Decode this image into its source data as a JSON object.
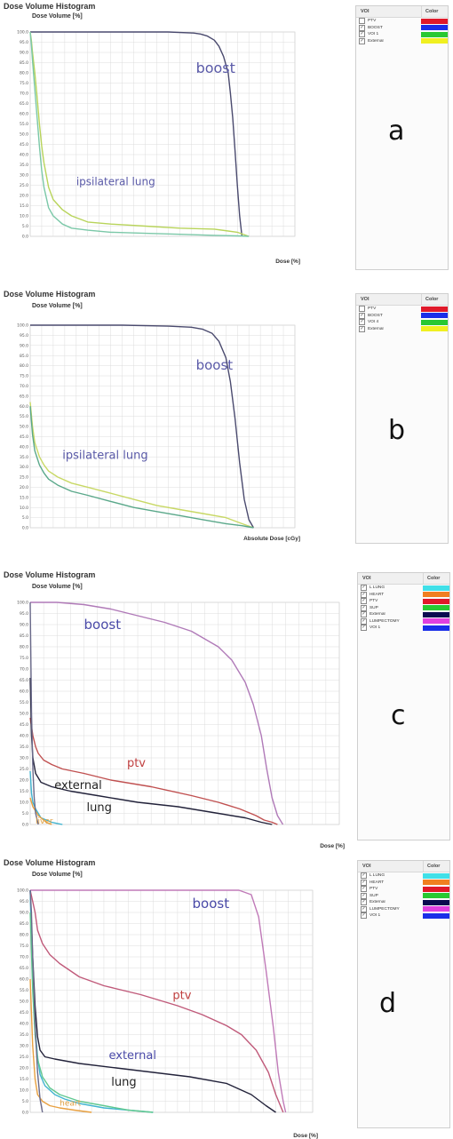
{
  "chart_data": [
    {
      "type": "line",
      "panel": "a",
      "title": "Dose Volume Histogram",
      "ylabel": "Dose Volume [%]",
      "xlabel": "Dose [%]",
      "ylim": [
        0,
        100
      ],
      "xlim": [
        0,
        115
      ],
      "y_ticks": [
        "0.0",
        "5.0",
        "10.0",
        "15.0",
        "20.0",
        "25.0",
        "30.0",
        "35.0",
        "40.0",
        "45.0",
        "50.0",
        "55.0",
        "60.0",
        "65.0",
        "70.0",
        "75.0",
        "80.0",
        "85.0",
        "90.0",
        "95.0",
        "100.0"
      ],
      "grid": true,
      "annotations": [
        {
          "text": "boost",
          "x": 72,
          "y": 80,
          "color": "#5a5aa8",
          "size": 16
        },
        {
          "text": "ipsilateral lung",
          "x": 20,
          "y": 25,
          "color": "#5a5aa8",
          "size": 12
        }
      ],
      "series": [
        {
          "color": "#4a4a6e",
          "x": [
            0,
            40,
            60,
            71,
            74,
            77,
            80,
            82,
            84,
            86,
            87,
            88,
            89,
            90,
            91,
            92
          ],
          "y": [
            100,
            100,
            100,
            99.5,
            99,
            98,
            96,
            93,
            88,
            80,
            70,
            58,
            42,
            25,
            10,
            0
          ]
        },
        {
          "color": "#b8d45a",
          "x": [
            0,
            0.5,
            1,
            2,
            3,
            4,
            5,
            6,
            8,
            10,
            14,
            18,
            25,
            35,
            50,
            65,
            80,
            90,
            95
          ],
          "y": [
            100,
            96,
            90,
            80,
            68,
            55,
            44,
            36,
            24,
            18,
            13,
            10,
            7,
            6,
            5,
            4,
            3.5,
            2,
            0
          ]
        },
        {
          "color": "#7bc8a8",
          "x": [
            0,
            0.5,
            1,
            2,
            3,
            4,
            5,
            6,
            8,
            10,
            14,
            18,
            25,
            35,
            50,
            65,
            80,
            90,
            95
          ],
          "y": [
            100,
            94,
            86,
            72,
            58,
            44,
            32,
            24,
            14,
            10,
            6,
            4,
            3,
            2,
            1.5,
            1,
            0.5,
            0.2,
            0
          ]
        }
      ],
      "legend": {
        "header_voi": "VOI",
        "header_color": "Color",
        "items": [
          {
            "label": "PTV",
            "checked": false,
            "color": "#e0192a"
          },
          {
            "label": "BOOST",
            "checked": true,
            "color": "#1a2ee8"
          },
          {
            "label": "VOI 1",
            "checked": true,
            "color": "#28c832"
          },
          {
            "label": "External",
            "checked": true,
            "color": "#f0f020"
          }
        ]
      }
    },
    {
      "type": "line",
      "panel": "b",
      "title": "Dose Volume Histogram",
      "ylabel": "Dose Volume [%]",
      "xlabel": "Absolute Dose [cGy]",
      "ylim": [
        0,
        100
      ],
      "xlim": [
        0,
        115
      ],
      "y_ticks": [
        "0.0",
        "5.0",
        "10.0",
        "15.0",
        "20.0",
        "25.0",
        "30.0",
        "35.0",
        "40.0",
        "45.0",
        "50.0",
        "55.0",
        "60.0",
        "65.0",
        "70.0",
        "75.0",
        "80.0",
        "85.0",
        "90.0",
        "95.0",
        "100.0"
      ],
      "grid": true,
      "annotations": [
        {
          "text": "boost",
          "x": 72,
          "y": 78,
          "color": "#5a5aa8",
          "size": 15
        },
        {
          "text": "ipsilateral lung",
          "x": 14,
          "y": 34,
          "color": "#5a5aa8",
          "size": 13
        }
      ],
      "series": [
        {
          "color": "#4a4a6e",
          "x": [
            0,
            40,
            60,
            70,
            75,
            79,
            82,
            85,
            87,
            89,
            91,
            93,
            95,
            97
          ],
          "y": [
            100,
            100,
            99.5,
            99,
            98,
            96,
            92,
            84,
            72,
            54,
            32,
            14,
            4,
            0
          ]
        },
        {
          "color": "#c8d865",
          "x": [
            0,
            1,
            2,
            4,
            6,
            8,
            12,
            18,
            25,
            35,
            45,
            55,
            65,
            75,
            85,
            92,
            97
          ],
          "y": [
            62,
            50,
            42,
            35,
            31,
            28,
            25,
            22,
            20,
            17,
            14,
            11,
            9,
            7,
            5,
            2,
            0
          ]
        },
        {
          "color": "#5aa88a",
          "x": [
            0,
            1,
            2,
            4,
            6,
            8,
            12,
            18,
            25,
            35,
            45,
            55,
            65,
            75,
            85,
            92,
            97
          ],
          "y": [
            60,
            46,
            38,
            31,
            27,
            24,
            21,
            18,
            16,
            13,
            10,
            8,
            6,
            4,
            2,
            1,
            0
          ]
        }
      ],
      "legend": {
        "header_voi": "VOI",
        "header_color": "Color",
        "items": [
          {
            "label": "PTV",
            "checked": false,
            "color": "#e0192a"
          },
          {
            "label": "BOOST",
            "checked": true,
            "color": "#1a2ee8"
          },
          {
            "label": "VOI 4",
            "checked": true,
            "color": "#28c832"
          },
          {
            "label": "External",
            "checked": true,
            "color": "#f0f020"
          }
        ]
      }
    },
    {
      "type": "line",
      "panel": "c",
      "title": "Dose Volume Histogram",
      "ylabel": "Dose Volume [%]",
      "xlabel": "Dose [%]",
      "ylim": [
        0,
        100
      ],
      "xlim": [
        0,
        115
      ],
      "y_ticks": [
        "0.0",
        "5.0",
        "10.0",
        "15.0",
        "20.0",
        "25.0",
        "30.0",
        "35.0",
        "40.0",
        "45.0",
        "50.0",
        "55.0",
        "60.0",
        "65.0",
        "70.0",
        "75.0",
        "80.0",
        "85.0",
        "90.0",
        "95.0",
        "100.0"
      ],
      "grid": true,
      "annotations": [
        {
          "text": "boost",
          "x": 20,
          "y": 88,
          "color": "#4a4aa8",
          "size": 15
        },
        {
          "text": "ptv",
          "x": 36,
          "y": 26,
          "color": "#c04040",
          "size": 13
        },
        {
          "text": "external",
          "x": 9,
          "y": 16,
          "color": "#222222",
          "size": 13
        },
        {
          "text": "lung",
          "x": 21,
          "y": 6,
          "color": "#222222",
          "size": 13
        },
        {
          "text": "liver",
          "x": 2,
          "y": 0.5,
          "color": "#e0a040",
          "size": 9
        }
      ],
      "series": [
        {
          "color": "#b07ab8",
          "x": [
            0,
            10,
            20,
            30,
            40,
            50,
            60,
            70,
            75,
            80,
            83,
            86,
            88,
            90,
            92,
            94
          ],
          "y": [
            100,
            100,
            99,
            97,
            94,
            91,
            87,
            80,
            74,
            64,
            54,
            40,
            25,
            12,
            4,
            0
          ]
        },
        {
          "color": "#c05050",
          "x": [
            0,
            1,
            2,
            3,
            5,
            8,
            12,
            20,
            30,
            45,
            60,
            70,
            78,
            84,
            87,
            90,
            92
          ],
          "y": [
            48,
            40,
            35,
            32,
            29,
            27,
            25,
            23,
            20,
            17,
            13,
            10,
            7,
            4,
            2,
            1,
            0
          ]
        },
        {
          "color": "#22223a",
          "x": [
            0,
            0.5,
            1,
            2,
            4,
            8,
            15,
            25,
            40,
            55,
            70,
            80,
            86,
            90
          ],
          "y": [
            66,
            40,
            30,
            23,
            19,
            17,
            15,
            13,
            10,
            8,
            5,
            3,
            1,
            0
          ]
        },
        {
          "color": "#40b4d0",
          "x": [
            0,
            0.5,
            1,
            2,
            3,
            4,
            6,
            8,
            10,
            12
          ],
          "y": [
            24,
            14,
            10,
            7,
            5,
            3,
            2,
            1,
            0.5,
            0
          ]
        },
        {
          "color": "#e8a040",
          "x": [
            0,
            1,
            2,
            3,
            4,
            5,
            6,
            7,
            8
          ],
          "y": [
            12,
            8,
            6,
            4,
            3,
            2,
            1,
            0.5,
            0
          ]
        },
        {
          "color": "#6a6a8a",
          "x": [
            0,
            0.2,
            0.5,
            1,
            1.5,
            2,
            3
          ],
          "y": [
            100,
            80,
            50,
            25,
            12,
            5,
            0
          ]
        }
      ],
      "legend": {
        "header_voi": "VOI",
        "header_color": "Color",
        "items": [
          {
            "label": "L LUNG",
            "checked": true,
            "color": "#40e0e8"
          },
          {
            "label": "HEART",
            "checked": true,
            "color": "#f07f20"
          },
          {
            "label": "PTV",
            "checked": true,
            "color": "#e0192a"
          },
          {
            "label": "SUP",
            "checked": true,
            "color": "#28c832"
          },
          {
            "label": "External",
            "checked": true,
            "color": "#0a0a50"
          },
          {
            "label": "LUMPECTOMY",
            "checked": true,
            "color": "#e040e0"
          },
          {
            "label": "VOI 1",
            "checked": true,
            "color": "#1a2ee8"
          }
        ]
      }
    },
    {
      "type": "line",
      "panel": "d",
      "title": "Dose Volume Histogram",
      "ylabel": "Dose Volume [%]",
      "xlabel": "Dose [%]",
      "ylim": [
        0,
        100
      ],
      "xlim": [
        0,
        115
      ],
      "y_ticks": [
        "0.0",
        "5.0",
        "10.0",
        "15.0",
        "20.0",
        "25.0",
        "30.0",
        "35.0",
        "40.0",
        "45.0",
        "50.0",
        "55.0",
        "60.0",
        "65.0",
        "70.0",
        "75.0",
        "80.0",
        "85.0",
        "90.0",
        "95.0",
        "100.0"
      ],
      "grid": true,
      "annotations": [
        {
          "text": "boost",
          "x": 66,
          "y": 92,
          "color": "#4a4aa8",
          "size": 15
        },
        {
          "text": "ptv",
          "x": 58,
          "y": 51,
          "color": "#c04040",
          "size": 13
        },
        {
          "text": "external",
          "x": 32,
          "y": 24,
          "color": "#4a4aa8",
          "size": 13
        },
        {
          "text": "lung",
          "x": 33,
          "y": 12,
          "color": "#222222",
          "size": 13
        },
        {
          "text": "heart",
          "x": 12,
          "y": 3,
          "color": "#e0a040",
          "size": 9
        }
      ],
      "series": [
        {
          "color": "#c07ab8",
          "x": [
            0,
            30,
            60,
            85,
            90,
            93,
            96,
            99,
            101,
            103,
            104
          ],
          "y": [
            100,
            100,
            100,
            100,
            98,
            88,
            64,
            38,
            18,
            5,
            0
          ]
        },
        {
          "color": "#c05a7a",
          "x": [
            0,
            1,
            2,
            3,
            5,
            8,
            12,
            20,
            30,
            45,
            60,
            70,
            80,
            86,
            92,
            97,
            100,
            103
          ],
          "y": [
            100,
            95,
            90,
            82,
            76,
            71,
            67,
            61,
            57,
            53,
            48,
            44,
            39,
            35,
            28,
            18,
            8,
            0
          ]
        },
        {
          "color": "#22223a",
          "x": [
            0,
            1,
            2,
            3,
            4,
            6,
            10,
            20,
            35,
            50,
            65,
            80,
            90,
            96,
            100
          ],
          "y": [
            100,
            70,
            48,
            34,
            28,
            25,
            24,
            22,
            20,
            18,
            16,
            13,
            8,
            3,
            0
          ]
        },
        {
          "color": "#40b4d0",
          "x": [
            0,
            1,
            2,
            3,
            4,
            6,
            10,
            14,
            20,
            30,
            40,
            50
          ],
          "y": [
            100,
            60,
            38,
            25,
            17,
            12,
            8,
            6,
            4,
            2,
            1,
            0
          ]
        },
        {
          "color": "#60c890",
          "x": [
            0,
            1,
            2,
            3,
            5,
            8,
            12,
            20,
            30,
            40,
            50
          ],
          "y": [
            90,
            55,
            35,
            24,
            16,
            11,
            8,
            5,
            3,
            1,
            0
          ]
        },
        {
          "color": "#e8a040",
          "x": [
            0,
            1,
            2,
            3,
            5,
            8,
            12,
            18,
            25
          ],
          "y": [
            60,
            30,
            15,
            8,
            5,
            3,
            2,
            1,
            0
          ]
        },
        {
          "color": "#6a6a8a",
          "x": [
            0,
            0.5,
            1,
            2,
            3,
            4,
            5
          ],
          "y": [
            100,
            90,
            70,
            40,
            18,
            6,
            0
          ]
        }
      ],
      "legend": {
        "header_voi": "VOI",
        "header_color": "Color",
        "items": [
          {
            "label": "L LUNG",
            "checked": true,
            "color": "#40e0e8"
          },
          {
            "label": "HEART",
            "checked": true,
            "color": "#f07f20"
          },
          {
            "label": "PTV",
            "checked": true,
            "color": "#e0192a"
          },
          {
            "label": "SUP",
            "checked": true,
            "color": "#28c832"
          },
          {
            "label": "External",
            "checked": true,
            "color": "#0a0a50"
          },
          {
            "label": "LUMPECTOMY",
            "checked": true,
            "color": "#e040e0"
          },
          {
            "label": "VOI 1",
            "checked": true,
            "color": "#1a2ee8"
          }
        ]
      }
    }
  ],
  "panel_letters": [
    "a",
    "b",
    "c",
    "d"
  ]
}
